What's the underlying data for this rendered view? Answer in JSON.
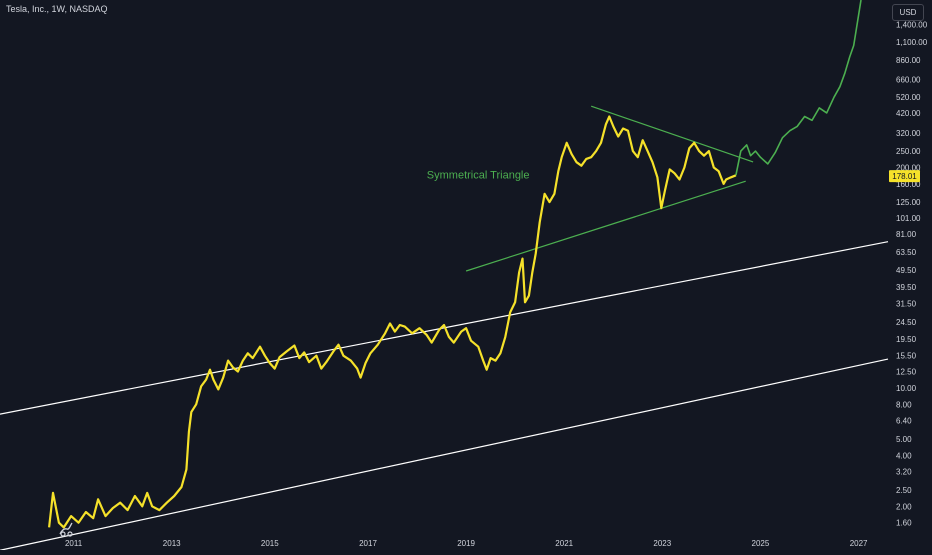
{
  "header": {
    "title": "Tesla, Inc., 1W, NASDAQ",
    "currency": "USD"
  },
  "chart_data": {
    "type": "line",
    "title": "",
    "xlabel": "",
    "ylabel": "",
    "y_scale": "log",
    "grid": false,
    "x_range": [
      2009.5,
      2027.6
    ],
    "y_range": [
      1.41,
      1950
    ],
    "x_ticks": [
      "2011",
      "2013",
      "2015",
      "2017",
      "2019",
      "2021",
      "2023",
      "2025",
      "2027"
    ],
    "y_ticks": [
      {
        "label": "1,400.00",
        "value": 1400
      },
      {
        "label": "1,100.00",
        "value": 1100
      },
      {
        "label": "860.00",
        "value": 860
      },
      {
        "label": "660.00",
        "value": 660
      },
      {
        "label": "520.00",
        "value": 520
      },
      {
        "label": "420.00",
        "value": 420
      },
      {
        "label": "320.00",
        "value": 320
      },
      {
        "label": "250.00",
        "value": 250
      },
      {
        "label": "200.00",
        "value": 200
      },
      {
        "label": "160.00",
        "value": 160
      },
      {
        "label": "125.00",
        "value": 125
      },
      {
        "label": "101.00",
        "value": 101
      },
      {
        "label": "81.00",
        "value": 81
      },
      {
        "label": "63.50",
        "value": 63.5
      },
      {
        "label": "49.50",
        "value": 49.5
      },
      {
        "label": "39.50",
        "value": 39.5
      },
      {
        "label": "31.50",
        "value": 31.5
      },
      {
        "label": "24.50",
        "value": 24.5
      },
      {
        "label": "19.50",
        "value": 19.5
      },
      {
        "label": "15.50",
        "value": 15.5
      },
      {
        "label": "12.50",
        "value": 12.5
      },
      {
        "label": "10.00",
        "value": 10
      },
      {
        "label": "8.00",
        "value": 8
      },
      {
        "label": "6.40",
        "value": 6.4
      },
      {
        "label": "5.00",
        "value": 5
      },
      {
        "label": "4.00",
        "value": 4
      },
      {
        "label": "3.20",
        "value": 3.2
      },
      {
        "label": "2.50",
        "value": 2.5
      },
      {
        "label": "2.00",
        "value": 2
      },
      {
        "label": "1.60",
        "value": 1.6
      }
    ],
    "last_price": {
      "label": "178.01",
      "value": 178.01
    },
    "annotations": [
      {
        "text": "Symmetrical Triangle",
        "x": 2018.2,
        "y": 172
      }
    ],
    "series": [
      {
        "color": "#f5e12a",
        "points": [
          [
            2010.5,
            1.5
          ],
          [
            2010.58,
            2.4
          ],
          [
            2010.7,
            1.6
          ],
          [
            2010.8,
            1.5
          ],
          [
            2010.95,
            1.75
          ],
          [
            2011.1,
            1.6
          ],
          [
            2011.25,
            1.85
          ],
          [
            2011.4,
            1.7
          ],
          [
            2011.5,
            2.2
          ],
          [
            2011.65,
            1.75
          ],
          [
            2011.8,
            1.95
          ],
          [
            2011.95,
            2.1
          ],
          [
            2012.1,
            1.9
          ],
          [
            2012.25,
            2.3
          ],
          [
            2012.4,
            2.0
          ],
          [
            2012.5,
            2.4
          ],
          [
            2012.6,
            2.0
          ],
          [
            2012.75,
            1.9
          ],
          [
            2012.9,
            2.1
          ],
          [
            2013.05,
            2.3
          ],
          [
            2013.2,
            2.6
          ],
          [
            2013.3,
            3.3
          ],
          [
            2013.35,
            5.5
          ],
          [
            2013.4,
            7.2
          ],
          [
            2013.5,
            8.0
          ],
          [
            2013.6,
            10.2
          ],
          [
            2013.7,
            11.2
          ],
          [
            2013.78,
            12.8
          ],
          [
            2013.85,
            11.2
          ],
          [
            2013.95,
            9.8
          ],
          [
            2014.05,
            11.5
          ],
          [
            2014.15,
            14.5
          ],
          [
            2014.25,
            13.2
          ],
          [
            2014.35,
            12.5
          ],
          [
            2014.45,
            14.5
          ],
          [
            2014.55,
            16.0
          ],
          [
            2014.65,
            15.0
          ],
          [
            2014.8,
            17.5
          ],
          [
            2014.9,
            15.5
          ],
          [
            2015.0,
            14.0
          ],
          [
            2015.1,
            13.0
          ],
          [
            2015.2,
            15.2
          ],
          [
            2015.35,
            16.5
          ],
          [
            2015.5,
            17.8
          ],
          [
            2015.6,
            15.0
          ],
          [
            2015.7,
            16.2
          ],
          [
            2015.8,
            14.2
          ],
          [
            2015.95,
            15.5
          ],
          [
            2016.05,
            13.0
          ],
          [
            2016.15,
            14.2
          ],
          [
            2016.3,
            16.5
          ],
          [
            2016.4,
            18.0
          ],
          [
            2016.5,
            15.5
          ],
          [
            2016.65,
            14.5
          ],
          [
            2016.78,
            13.0
          ],
          [
            2016.85,
            11.5
          ],
          [
            2016.95,
            14.0
          ],
          [
            2017.05,
            16.0
          ],
          [
            2017.2,
            18.0
          ],
          [
            2017.35,
            21.0
          ],
          [
            2017.45,
            24.0
          ],
          [
            2017.55,
            21.5
          ],
          [
            2017.65,
            23.5
          ],
          [
            2017.75,
            23.0
          ],
          [
            2017.9,
            21.0
          ],
          [
            2018.05,
            22.5
          ],
          [
            2018.2,
            20.5
          ],
          [
            2018.3,
            18.5
          ],
          [
            2018.45,
            22.0
          ],
          [
            2018.55,
            23.5
          ],
          [
            2018.65,
            20.0
          ],
          [
            2018.75,
            18.5
          ],
          [
            2018.9,
            21.5
          ],
          [
            2019.0,
            22.5
          ],
          [
            2019.1,
            19.0
          ],
          [
            2019.25,
            17.5
          ],
          [
            2019.35,
            14.5
          ],
          [
            2019.42,
            12.8
          ],
          [
            2019.5,
            15.0
          ],
          [
            2019.6,
            14.5
          ],
          [
            2019.7,
            16.0
          ],
          [
            2019.8,
            20.0
          ],
          [
            2019.9,
            28.0
          ],
          [
            2020.0,
            32.0
          ],
          [
            2020.08,
            48.0
          ],
          [
            2020.15,
            58.0
          ],
          [
            2020.2,
            32.0
          ],
          [
            2020.28,
            35.0
          ],
          [
            2020.35,
            48.0
          ],
          [
            2020.42,
            62.0
          ],
          [
            2020.5,
            95.0
          ],
          [
            2020.6,
            140.0
          ],
          [
            2020.7,
            125.0
          ],
          [
            2020.8,
            140.0
          ],
          [
            2020.88,
            190.0
          ],
          [
            2020.95,
            230.0
          ],
          [
            2021.05,
            280.0
          ],
          [
            2021.15,
            240.0
          ],
          [
            2021.25,
            215.0
          ],
          [
            2021.35,
            205.0
          ],
          [
            2021.45,
            225.0
          ],
          [
            2021.55,
            230.0
          ],
          [
            2021.65,
            250.0
          ],
          [
            2021.75,
            280.0
          ],
          [
            2021.85,
            360.0
          ],
          [
            2021.92,
            400.0
          ],
          [
            2022.0,
            350.0
          ],
          [
            2022.1,
            305.0
          ],
          [
            2022.2,
            340.0
          ],
          [
            2022.3,
            330.0
          ],
          [
            2022.4,
            250.0
          ],
          [
            2022.5,
            230.0
          ],
          [
            2022.6,
            290.0
          ],
          [
            2022.7,
            250.0
          ],
          [
            2022.8,
            215.0
          ],
          [
            2022.9,
            175.0
          ],
          [
            2022.98,
            115.0
          ],
          [
            2023.05,
            145.0
          ],
          [
            2023.15,
            195.0
          ],
          [
            2023.25,
            185.0
          ],
          [
            2023.35,
            170.0
          ],
          [
            2023.45,
            200.0
          ],
          [
            2023.55,
            260.0
          ],
          [
            2023.65,
            280.0
          ],
          [
            2023.75,
            250.0
          ],
          [
            2023.85,
            235.0
          ],
          [
            2023.95,
            250.0
          ],
          [
            2024.05,
            200.0
          ],
          [
            2024.15,
            190.0
          ],
          [
            2024.25,
            160.0
          ],
          [
            2024.3,
            170.0
          ],
          [
            2024.4,
            175.0
          ],
          [
            2024.5,
            180.0
          ]
        ]
      },
      {
        "color": "#4caf50",
        "points": [
          [
            2024.5,
            180.0
          ],
          [
            2024.6,
            250.0
          ],
          [
            2024.72,
            272.0
          ],
          [
            2024.8,
            235.0
          ],
          [
            2024.9,
            250.0
          ],
          [
            2025.0,
            230.0
          ],
          [
            2025.15,
            210.0
          ],
          [
            2025.3,
            245.0
          ],
          [
            2025.45,
            300.0
          ],
          [
            2025.6,
            330.0
          ],
          [
            2025.75,
            350.0
          ],
          [
            2025.9,
            400.0
          ],
          [
            2026.05,
            380.0
          ],
          [
            2026.2,
            450.0
          ],
          [
            2026.35,
            420.0
          ],
          [
            2026.5,
            520.0
          ],
          [
            2026.62,
            600.0
          ],
          [
            2026.72,
            720.0
          ],
          [
            2026.82,
            900.0
          ],
          [
            2026.9,
            1050.0
          ],
          [
            2026.97,
            1400.0
          ],
          [
            2027.05,
            1950.0
          ]
        ]
      }
    ],
    "trendlines": [
      {
        "color": "#ffffff",
        "from": [
          2009.5,
          7.0
        ],
        "to": [
          2027.6,
          73.0
        ]
      },
      {
        "color": "#ffffff",
        "from": [
          2009.5,
          1.1
        ],
        "to": [
          2027.6,
          14.8
        ]
      },
      {
        "color": "#4caf50",
        "from": [
          2019.0,
          49.0
        ],
        "to": [
          2024.7,
          166.0
        ]
      },
      {
        "color": "#4caf50",
        "from": [
          2021.55,
          460.0
        ],
        "to": [
          2024.85,
          216.0
        ]
      }
    ]
  }
}
